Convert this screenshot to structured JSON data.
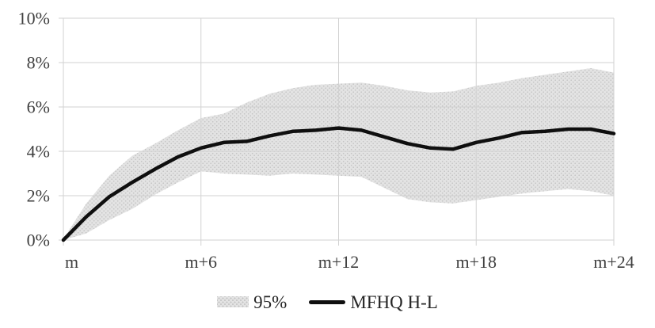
{
  "chart_data": {
    "type": "line",
    "title": "",
    "xlabel": "",
    "ylabel": "",
    "x_offsets": [
      0,
      1,
      2,
      3,
      4,
      5,
      6,
      7,
      8,
      9,
      10,
      11,
      12,
      13,
      14,
      15,
      16,
      17,
      18,
      19,
      20,
      21,
      22,
      23,
      24
    ],
    "x_tick_positions": [
      0,
      6,
      12,
      18,
      24
    ],
    "x_tick_labels": [
      "m",
      "m+6",
      "m+12",
      "m+18",
      "m+24"
    ],
    "y_tick_values": [
      0,
      2,
      4,
      6,
      8,
      10
    ],
    "y_tick_labels": [
      "0%",
      "2%",
      "4%",
      "6%",
      "8%",
      "10%"
    ],
    "xlim": [
      0,
      24
    ],
    "ylim": [
      0,
      10
    ],
    "grid": true,
    "legend_position": "bottom",
    "series": [
      {
        "name": "95%",
        "type": "band",
        "upper": [
          0.05,
          1.65,
          2.9,
          3.8,
          4.35,
          4.95,
          5.5,
          5.7,
          6.2,
          6.6,
          6.85,
          7.0,
          7.05,
          7.1,
          6.95,
          6.75,
          6.65,
          6.7,
          6.95,
          7.1,
          7.3,
          7.45,
          7.6,
          7.75,
          7.55
        ],
        "lower": [
          0.0,
          0.3,
          0.9,
          1.4,
          2.05,
          2.6,
          3.1,
          3.0,
          2.95,
          2.9,
          3.0,
          2.95,
          2.9,
          2.85,
          2.35,
          1.85,
          1.7,
          1.65,
          1.8,
          1.95,
          2.1,
          2.2,
          2.3,
          2.2,
          2.0
        ]
      },
      {
        "name": "MFHQ H-L",
        "type": "line",
        "values": [
          0.0,
          1.05,
          1.95,
          2.6,
          3.2,
          3.75,
          4.15,
          4.4,
          4.45,
          4.7,
          4.9,
          4.95,
          5.05,
          4.95,
          4.65,
          4.35,
          4.15,
          4.1,
          4.4,
          4.6,
          4.85,
          4.9,
          5.0,
          5.0,
          4.8
        ]
      }
    ]
  },
  "legend": {
    "band_label": "95%",
    "line_label": "MFHQ H-L"
  },
  "colors": {
    "background": "#ffffff",
    "band_fill": "#e3e3e3",
    "band_dots": "#c2c2c2",
    "line": "#0f0f0f",
    "grid": "#d2d2d2",
    "axis_text": "#3f3f3f"
  }
}
